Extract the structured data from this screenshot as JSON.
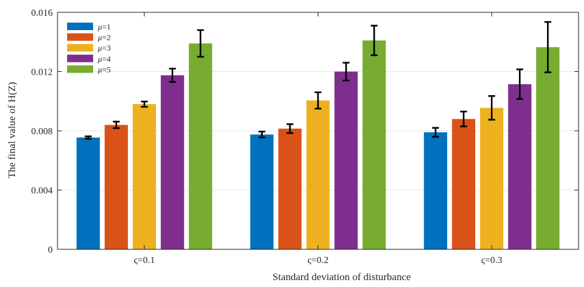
{
  "chart_data": {
    "type": "bar",
    "title": "",
    "xlabel": "Standard deviation of disturbance",
    "ylabel": "The final value of H(Z)",
    "categories": [
      "ς=0.1",
      "ς=0.2",
      "ς=0.3"
    ],
    "ylim": [
      0,
      0.016
    ],
    "yticks": [
      "0",
      "0.004",
      "0.008",
      "0.012",
      "0.016"
    ],
    "grid": true,
    "legend_position": "top-left",
    "series": [
      {
        "name": "μ=1",
        "color": "#0072BD",
        "values": [
          0.00755,
          0.00775,
          0.0079
        ],
        "errors": [
          8e-05,
          0.0002,
          0.0003
        ]
      },
      {
        "name": "μ=2",
        "color": "#D95319",
        "values": [
          0.0084,
          0.00815,
          0.0088
        ],
        "errors": [
          0.00022,
          0.0003,
          0.0005
        ]
      },
      {
        "name": "μ=3",
        "color": "#EDB120",
        "values": [
          0.0098,
          0.01005,
          0.00955
        ],
        "errors": [
          0.00018,
          0.00055,
          0.0008
        ]
      },
      {
        "name": "μ=4",
        "color": "#7E2F8E",
        "values": [
          0.01175,
          0.012,
          0.01115
        ],
        "errors": [
          0.00045,
          0.0006,
          0.001
        ]
      },
      {
        "name": "μ=5",
        "color": "#77AC30",
        "values": [
          0.0139,
          0.0141,
          0.01365
        ],
        "errors": [
          0.0009,
          0.001,
          0.0017
        ]
      }
    ]
  }
}
